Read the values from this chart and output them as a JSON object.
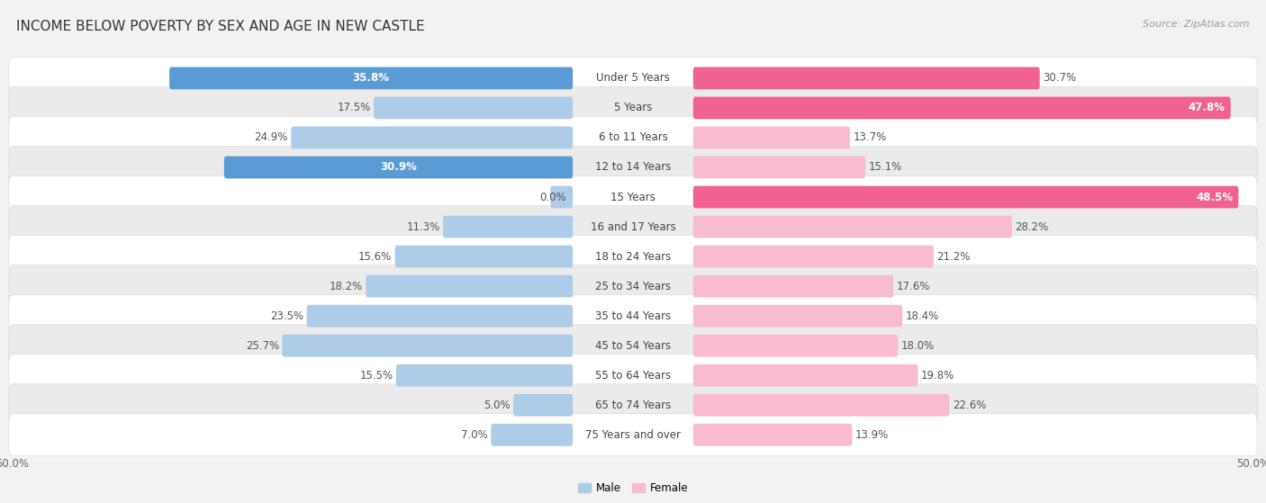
{
  "title": "INCOME BELOW POVERTY BY SEX AND AGE IN NEW CASTLE",
  "source": "Source: ZipAtlas.com",
  "categories": [
    "Under 5 Years",
    "5 Years",
    "6 to 11 Years",
    "12 to 14 Years",
    "15 Years",
    "16 and 17 Years",
    "18 to 24 Years",
    "25 to 34 Years",
    "35 to 44 Years",
    "45 to 54 Years",
    "55 to 64 Years",
    "65 to 74 Years",
    "75 Years and over"
  ],
  "male_values": [
    35.8,
    17.5,
    24.9,
    30.9,
    0.0,
    11.3,
    15.6,
    18.2,
    23.5,
    25.7,
    15.5,
    5.0,
    7.0
  ],
  "female_values": [
    30.7,
    47.8,
    13.7,
    15.1,
    48.5,
    28.2,
    21.2,
    17.6,
    18.4,
    18.0,
    19.8,
    22.6,
    13.9
  ],
  "male_color_dark": "#5b9bd5",
  "male_color_light": "#aecce8",
  "female_color_dark": "#f06292",
  "female_color_light": "#f8bbd0",
  "male_label": "Male",
  "female_label": "Female",
  "axis_limit": 50.0,
  "bg_color": "#f2f2f2",
  "row_bg_white": "#ffffff",
  "row_bg_gray": "#ebebeb",
  "title_fontsize": 11,
  "label_fontsize": 8.5,
  "cat_fontsize": 8.5,
  "tick_fontsize": 8.5,
  "source_fontsize": 8
}
